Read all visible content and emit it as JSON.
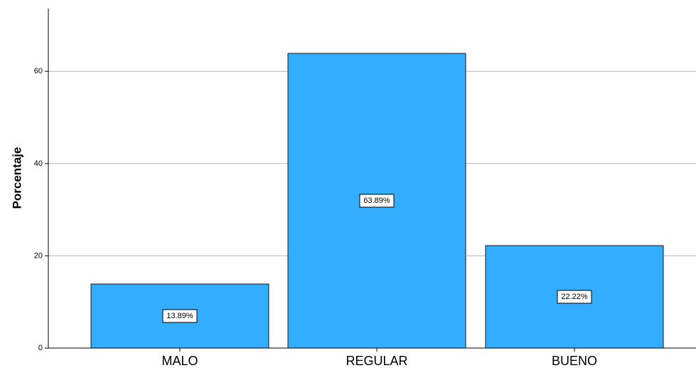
{
  "chart_data": {
    "type": "bar",
    "title": "",
    "xlabel": "",
    "ylabel": "Porcentaje",
    "categories": [
      "MALO",
      "REGULAR",
      "BUENO"
    ],
    "values": [
      13.89,
      63.89,
      22.22
    ],
    "data_labels": [
      "13.89%",
      "63.89%",
      "22.22%"
    ],
    "ylim": [
      0,
      73.6
    ],
    "yticks": [
      0,
      20,
      40,
      60
    ],
    "grid": "horizontal",
    "bar_color": "#33adff",
    "bar_edge_color": "#1a1a1a",
    "grid_color": "#b5b5b5"
  }
}
